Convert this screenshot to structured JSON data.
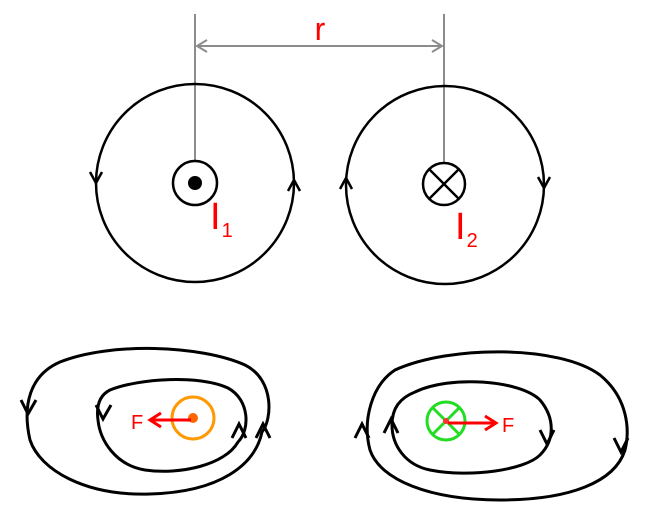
{
  "labels": {
    "distance": "r",
    "current_1": "I",
    "current_1_sub": "1",
    "current_2": "I",
    "current_2_sub": "2",
    "force_left": "F",
    "force_right": "F"
  },
  "colors": {
    "stroke": "#000000",
    "guide": "#8c8c8c",
    "label": "#ff0000",
    "force_arrow": "#ff0000",
    "wire_left_ring": "#ff9900",
    "wire_left_core": "#ff6600",
    "wire_right_ring": "#22dd22",
    "wire_right_cross": "#ff3333"
  },
  "icons": {
    "wire_1": "current-out-of-page-dot",
    "wire_2": "current-into-page-cross"
  }
}
